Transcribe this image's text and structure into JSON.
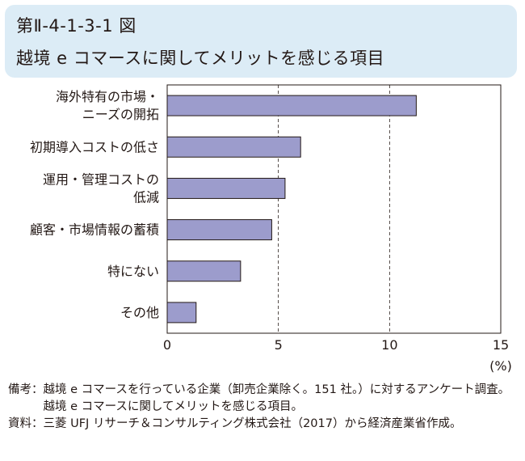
{
  "header": {
    "figure_number": "第Ⅱ-4-1-3-1 図",
    "title": "越境 e コマースに関してメリットを感じる項目"
  },
  "chart_data": {
    "type": "bar",
    "orientation": "horizontal",
    "categories": [
      [
        "海外特有の市場・",
        "ニーズの開拓"
      ],
      [
        "初期導入コストの低さ"
      ],
      [
        "運用・管理コストの",
        "低減"
      ],
      [
        "顧客・市場情報の蓄積"
      ],
      [
        "特にない"
      ],
      [
        "その他"
      ]
    ],
    "values": [
      11.2,
      6.0,
      5.3,
      4.7,
      3.3,
      1.3
    ],
    "xlim": [
      0,
      15
    ],
    "xticks": [
      "0",
      "5",
      "10",
      "15"
    ],
    "xunit": "(%)",
    "grid": "vertical dashed at 5 and 10",
    "bar_color": "#9c9ccc",
    "bar_stroke": "#231815"
  },
  "notes": [
    {
      "label": "備考：",
      "text": "越境 e コマースを行っている企業（卸売企業除く。151 社。）に対するアンケート調査。越境 e コマースに関してメリットを感じる項目。"
    },
    {
      "label": "資料：",
      "text": "三菱 UFJ リサーチ＆コンサルティング株式会社（2017）から経済産業省作成。"
    }
  ]
}
